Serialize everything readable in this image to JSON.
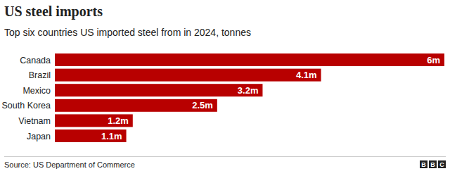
{
  "chart_data": {
    "type": "bar",
    "orientation": "horizontal",
    "title": "US steel imports",
    "subtitle": "Top six countries US imported steel from in 2024, tonnes",
    "categories": [
      "Canada",
      "Brazil",
      "Mexico",
      "South Korea",
      "Vietnam",
      "Japan"
    ],
    "values": [
      6,
      4.1,
      3.2,
      2.5,
      1.2,
      1.1
    ],
    "value_labels": [
      "6m",
      "4.1m",
      "3.2m",
      "2.5m",
      "1.2m",
      "1.1m"
    ],
    "color": "#b80000",
    "xlim": [
      0,
      6
    ],
    "data_labels": true,
    "tick_labels": "y",
    "grid": false,
    "source": "Source: US Department of Commerce",
    "logo": "BBC"
  }
}
